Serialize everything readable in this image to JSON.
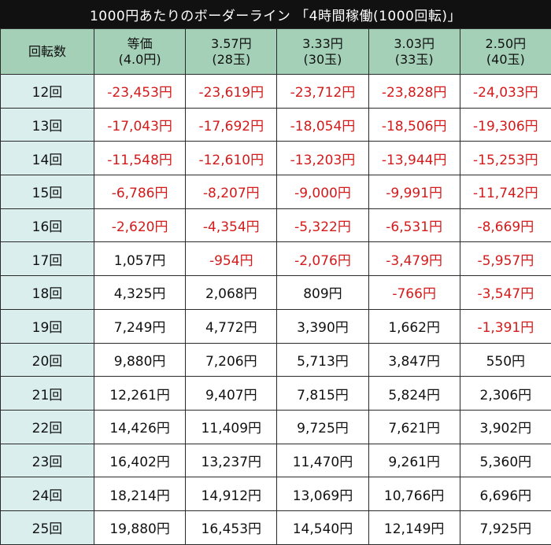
{
  "title": "1000円あたりのボーダーライン 「4時間稼働(1000回転)」",
  "colors": {
    "negative": "#d41a1a",
    "header_bg": "#a3d0b7",
    "rowhead_bg": "#daeeee",
    "title_bg": "#111111"
  },
  "columns": [
    {
      "line1": "回転数",
      "line2": ""
    },
    {
      "line1": "等価",
      "line2": "(4.0円)"
    },
    {
      "line1": "3.57円",
      "line2": "(28玉)"
    },
    {
      "line1": "3.33円",
      "line2": "(30玉)"
    },
    {
      "line1": "3.03円",
      "line2": "(33玉)"
    },
    {
      "line1": "2.50円",
      "line2": "(40玉)"
    }
  ],
  "rows": [
    {
      "label": "12回",
      "values": [
        "-23,453円",
        "-23,619円",
        "-23,712円",
        "-23,828円",
        "-24,033円"
      ]
    },
    {
      "label": "13回",
      "values": [
        "-17,043円",
        "-17,692円",
        "-18,054円",
        "-18,506円",
        "-19,306円"
      ]
    },
    {
      "label": "14回",
      "values": [
        "-11,548円",
        "-12,610円",
        "-13,203円",
        "-13,944円",
        "-15,253円"
      ]
    },
    {
      "label": "15回",
      "values": [
        "-6,786円",
        "-8,207円",
        "-9,000円",
        "-9,991円",
        "-11,742円"
      ]
    },
    {
      "label": "16回",
      "values": [
        "-2,620円",
        "-4,354円",
        "-5,322円",
        "-6,531円",
        "-8,669円"
      ]
    },
    {
      "label": "17回",
      "values": [
        "1,057円",
        "-954円",
        "-2,076円",
        "-3,479円",
        "-5,957円"
      ]
    },
    {
      "label": "18回",
      "values": [
        "4,325円",
        "2,068円",
        "809円",
        "-766円",
        "-3,547円"
      ]
    },
    {
      "label": "19回",
      "values": [
        "7,249円",
        "4,772円",
        "3,390円",
        "1,662円",
        "-1,391円"
      ]
    },
    {
      "label": "20回",
      "values": [
        "9,880円",
        "7,206円",
        "5,713円",
        "3,847円",
        "550円"
      ]
    },
    {
      "label": "21回",
      "values": [
        "12,261円",
        "9,407円",
        "7,815円",
        "5,824円",
        "2,306円"
      ]
    },
    {
      "label": "22回",
      "values": [
        "14,426円",
        "11,409円",
        "9,725円",
        "7,621円",
        "3,902円"
      ]
    },
    {
      "label": "23回",
      "values": [
        "16,402円",
        "13,237円",
        "11,470円",
        "9,261円",
        "5,360円"
      ]
    },
    {
      "label": "24回",
      "values": [
        "18,214円",
        "14,912円",
        "13,069円",
        "10,766円",
        "6,696円"
      ]
    },
    {
      "label": "25回",
      "values": [
        "19,880円",
        "16,453円",
        "14,540円",
        "12,149円",
        "7,925円"
      ]
    }
  ]
}
